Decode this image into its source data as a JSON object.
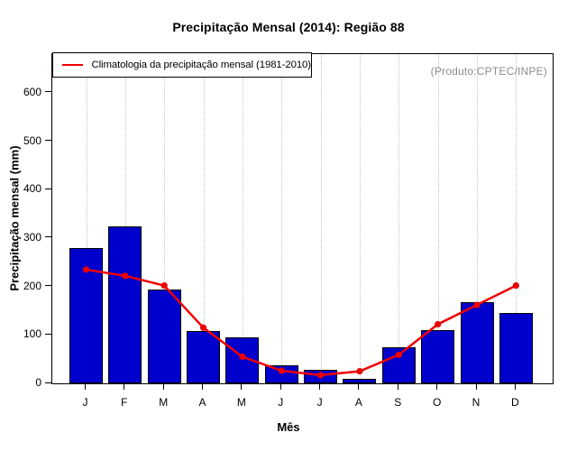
{
  "title": "Precipitação Mensal (2014): Região 88",
  "annotation": "(Produto:CPTEC/INPE)",
  "legend": {
    "label": "Climatologia da precipitação mensal (1981-2010)"
  },
  "colors": {
    "bar_fill": "#0000cc",
    "bar_border": "#000000",
    "line": "#ee0000",
    "gridline": "#c4c4c4",
    "annotation_text": "#8c8c8c"
  },
  "chart_data": {
    "type": "bar",
    "title": "Precipitação Mensal (2014): Região 88",
    "xlabel": "Mês",
    "ylabel": "Precipitação mensal (mm)",
    "categories": [
      "J",
      "F",
      "M",
      "A",
      "M",
      "J",
      "J",
      "A",
      "S",
      "O",
      "N",
      "D"
    ],
    "series": [
      {
        "name": "Precipitação mensal 2014",
        "type": "bar",
        "values": [
          280,
          324,
          194,
          108,
          95,
          37,
          28,
          9,
          75,
          110,
          168,
          145
        ]
      },
      {
        "name": "Climatologia da precipitação mensal (1981-2010)",
        "type": "line",
        "values": [
          235,
          222,
          202,
          115,
          55,
          26,
          17,
          25,
          59,
          122,
          162,
          202
        ]
      }
    ],
    "ylim": [
      0,
      680
    ],
    "yticks": [
      0,
      100,
      200,
      300,
      400,
      500,
      600
    ],
    "grid": "vertical-dotted",
    "legend_position": "top-left"
  }
}
